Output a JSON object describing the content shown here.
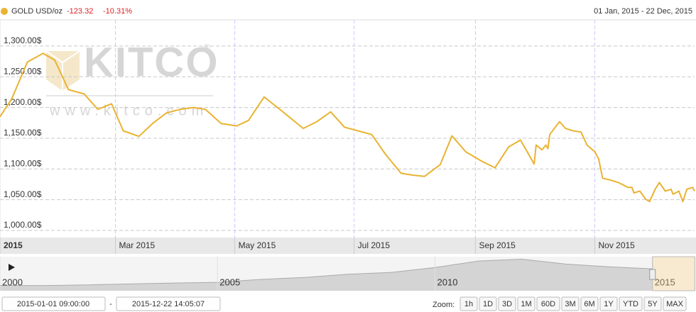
{
  "chart_data": {
    "type": "line",
    "header": {
      "change": "-123.32",
      "change_pct": "-10.31%",
      "range": "01 Jan, 2015 - 22 Dec, 2015"
    },
    "watermark": {
      "logo": "KITCO",
      "registered": "®",
      "url": "www.kitco.com"
    },
    "x": [
      "2015-01-01",
      "2015-01-07",
      "2015-01-15",
      "2015-01-23",
      "2015-01-29",
      "2015-02-05",
      "2015-02-13",
      "2015-02-20",
      "2015-02-27",
      "2015-03-05",
      "2015-03-13",
      "2015-03-20",
      "2015-03-27",
      "2015-04-03",
      "2015-04-10",
      "2015-04-16",
      "2015-04-24",
      "2015-05-02",
      "2015-05-08",
      "2015-05-16",
      "2015-05-24",
      "2015-06-05",
      "2015-06-12",
      "2015-06-19",
      "2015-06-26",
      "2015-07-10",
      "2015-07-17",
      "2015-07-25",
      "2015-07-31",
      "2015-08-06",
      "2015-08-14",
      "2015-08-20",
      "2015-08-27",
      "2015-09-04",
      "2015-09-11",
      "2015-09-18",
      "2015-09-24",
      "2015-09-28",
      "2015-10-01",
      "2015-10-02",
      "2015-10-05",
      "2015-10-07",
      "2015-10-08",
      "2015-10-09",
      "2015-10-14",
      "2015-10-17",
      "2015-10-21",
      "2015-10-25",
      "2015-10-28",
      "2015-11-01",
      "2015-11-03",
      "2015-11-05",
      "2015-11-09",
      "2015-11-13",
      "2015-11-18",
      "2015-11-20",
      "2015-11-21",
      "2015-11-24",
      "2015-11-27",
      "2015-11-29",
      "2015-12-02",
      "2015-12-04",
      "2015-12-07",
      "2015-12-10",
      "2015-12-11",
      "2015-12-14",
      "2015-12-16",
      "2015-12-18",
      "2015-12-21",
      "2015-12-22"
    ],
    "series": [
      {
        "name": "GOLD USD/oz",
        "color": "#e9b332",
        "values": [
          1185,
          1214,
          1274,
          1288,
          1277,
          1229,
          1222,
          1197,
          1206,
          1162,
          1153,
          1174,
          1191,
          1197,
          1200,
          1197,
          1174,
          1170,
          1179,
          1217,
          1197,
          1166,
          1177,
          1193,
          1168,
          1156,
          1124,
          1093,
          1090,
          1088,
          1107,
          1154,
          1128,
          1113,
          1102,
          1136,
          1147,
          1125,
          1108,
          1139,
          1131,
          1139,
          1133,
          1156,
          1177,
          1166,
          1162,
          1160,
          1139,
          1128,
          1116,
          1085,
          1082,
          1078,
          1070,
          1070,
          1061,
          1064,
          1051,
          1047,
          1068,
          1078,
          1064,
          1067,
          1059,
          1064,
          1047,
          1067,
          1070,
          1064
        ]
      }
    ],
    "xlim": [
      "2015-01-01",
      "2015-12-22"
    ],
    "xticks": [
      {
        "value": "2015-01-01",
        "label": "2015"
      },
      {
        "value": "2015-03-01",
        "label": "Mar 2015"
      },
      {
        "value": "2015-05-01",
        "label": "May 2015"
      },
      {
        "value": "2015-07-01",
        "label": "Jul 2015"
      },
      {
        "value": "2015-09-01",
        "label": "Sep 2015"
      },
      {
        "value": "2015-11-01",
        "label": "Nov 2015"
      }
    ],
    "ylim": [
      988.5,
      1342.5
    ],
    "yticks": [
      {
        "value": 1000,
        "label": "1,000.00$"
      },
      {
        "value": 1050,
        "label": "1,050.00$"
      },
      {
        "value": 1100,
        "label": "1,100.00$"
      },
      {
        "value": 1150,
        "label": "1,150.00$"
      },
      {
        "value": 1200,
        "label": "1,200.00$"
      },
      {
        "value": 1250,
        "label": "1,250.00$"
      },
      {
        "value": 1300,
        "label": "1,300.00$"
      }
    ],
    "grid": true,
    "navigator": {
      "x": [
        2000,
        2001,
        2002,
        2003,
        2004,
        2005,
        2006,
        2007,
        2008,
        2009,
        2010,
        2011,
        2012,
        2013,
        2014,
        2015
      ],
      "values": [
        280,
        270,
        310,
        360,
        410,
        445,
        600,
        700,
        870,
        970,
        1225,
        1570,
        1670,
        1410,
        1265,
        1160
      ],
      "xlim": [
        2000,
        2016
      ],
      "ylim": [
        0,
        1800
      ],
      "xticks": [
        2000,
        2005,
        2010,
        2015
      ]
    },
    "controls": {
      "from": "2015-01-01 09:00:00",
      "separator": "-",
      "to": "2015-12-22 14:05:07",
      "zoom_label": "Zoom:",
      "zoom": [
        "1h",
        "1D",
        "3D",
        "1M",
        "60D",
        "3M",
        "6M",
        "1Y",
        "YTD",
        "5Y",
        "MAX"
      ]
    }
  }
}
